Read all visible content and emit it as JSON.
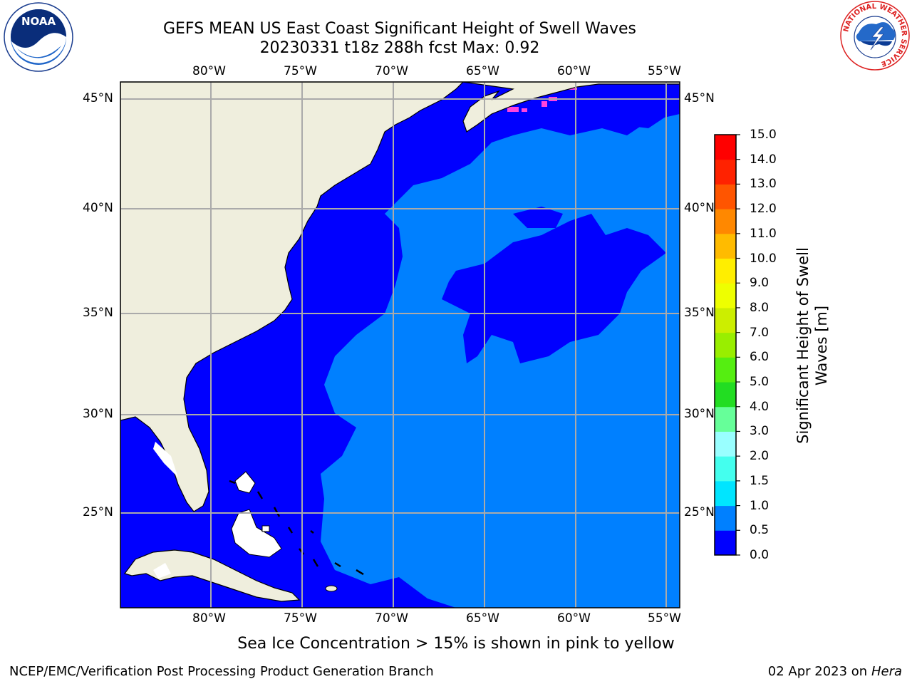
{
  "title_line1": "GEFS MEAN US East Coast Significant Height of Swell Waves",
  "title_line2": "20230331 t18z 288h fcst   Max: 0.92",
  "lon_labels": [
    "80°W",
    "75°W",
    "70°W",
    "65°W",
    "60°W",
    "55°W"
  ],
  "lat_labels": [
    "45°N",
    "40°N",
    "35°N",
    "30°N",
    "25°N"
  ],
  "colorbar": {
    "label": "Significant Height of Swell Waves [m]",
    "label_line1": "Significant Height of Swell",
    "label_line2": "Waves [m]",
    "ticks": [
      "0.0",
      "0.5",
      "1.0",
      "1.5",
      "2.0",
      "3.0",
      "4.0",
      "5.0",
      "6.0",
      "7.0",
      "8.0",
      "9.0",
      "10.0",
      "11.0",
      "12.0",
      "13.0",
      "14.0",
      "15.0"
    ],
    "colors": [
      "#0000ff",
      "#0080ff",
      "#00e5ff",
      "#44ffee",
      "#99ffff",
      "#66ff99",
      "#22dd22",
      "#55ee11",
      "#99ee00",
      "#ccee00",
      "#eeff00",
      "#ffee00",
      "#ffbb00",
      "#ff8800",
      "#ff5500",
      "#ff2200",
      "#ff0000"
    ]
  },
  "map": {
    "land_color": "#efeedd",
    "ocean_low_color": "#0000ff",
    "ocean_high_color": "#0080ff",
    "ice_color": "#ff44dd",
    "grid_color": "#aaaaaa"
  },
  "note": "Sea Ice Concentration > 15% is shown in pink to yellow",
  "footer_left": "NCEP/EMC/Verification Post Processing Product Generation Branch",
  "footer_right_date": "02 Apr 2023 on ",
  "footer_right_host": "Hera",
  "logos": {
    "noaa_text": "NOAA",
    "nws_text": "NATIONAL WEATHER SERVICE"
  }
}
